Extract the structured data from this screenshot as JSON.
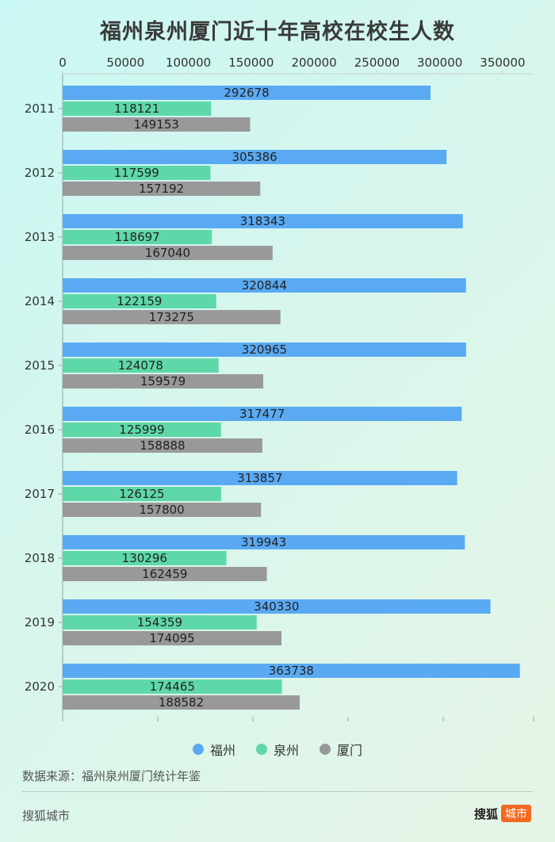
{
  "colors": {
    "fuzhou": "#5aaaf3",
    "quanzhou": "#5fd8a9",
    "xiamen": "#999999"
  },
  "chart_data": {
    "type": "bar",
    "orientation": "horizontal",
    "title": "福州泉州厦门近十年高校在校生人数",
    "categories": [
      "2011",
      "2012",
      "2013",
      "2014",
      "2015",
      "2016",
      "2017",
      "2018",
      "2019",
      "2020"
    ],
    "series": [
      {
        "name": "福州",
        "values": [
          292678,
          305386,
          318343,
          320844,
          320965,
          317477,
          313857,
          319943,
          340330,
          363738
        ]
      },
      {
        "name": "泉州",
        "values": [
          118121,
          117599,
          118697,
          122159,
          124078,
          125999,
          126125,
          130296,
          154359,
          174465
        ]
      },
      {
        "name": "厦门",
        "values": [
          149153,
          157192,
          167040,
          173275,
          159579,
          158888,
          157800,
          162459,
          174095,
          188582
        ]
      }
    ],
    "xticks": [
      "0",
      "50000",
      "100000",
      "150000",
      "200000",
      "250000",
      "300000",
      "350000"
    ],
    "xlim": [
      0,
      380000
    ],
    "legend": "bottom-center"
  },
  "footer": {
    "source": "数据来源：福州泉州厦门统计年鉴",
    "brand_left": "搜狐城市",
    "brand_right_text": "搜狐",
    "brand_right_badge": "城市"
  }
}
